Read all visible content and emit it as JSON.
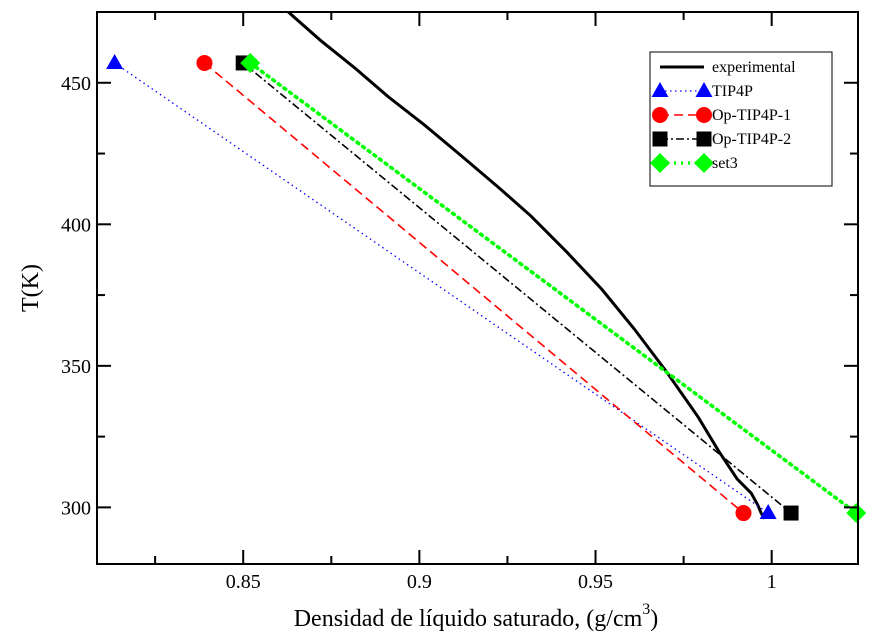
{
  "chart_data": {
    "type": "line",
    "title": "",
    "xlabel": "Densidad de líquido saturado, (g/cm",
    "xlabel_sup": "3",
    "xlabel_close": ")",
    "ylabel": "T(K)",
    "xlim": [
      0.8085,
      1.0245
    ],
    "ylim": [
      280,
      475
    ],
    "xticks": [
      0.85,
      0.9,
      0.95,
      1
    ],
    "xtick_labels": [
      "0.85",
      "0.9",
      "0.95",
      "1"
    ],
    "yticks": [
      300,
      350,
      400,
      450
    ],
    "ytick_labels": [
      "300",
      "350",
      "400",
      "450"
    ],
    "grid": false,
    "legend_position": "top-right",
    "series": [
      {
        "name": "experimental",
        "color": "#000000",
        "style": "solid",
        "marker": "none",
        "x": [
          0.8628,
          0.8719,
          0.8819,
          0.8912,
          0.9015,
          0.9121,
          0.9225,
          0.9316,
          0.942,
          0.9518,
          0.961,
          0.9701,
          0.9791,
          0.9849,
          0.9902,
          0.9942,
          0.996,
          0.997,
          0.998
        ],
        "y": [
          475,
          465,
          455,
          445,
          435,
          424,
          413,
          403,
          390,
          377,
          363,
          348,
          332,
          320,
          310,
          305,
          301,
          298,
          296
        ]
      },
      {
        "name": "TIP4P",
        "color": "#0000ff",
        "style": "dotted",
        "marker": "triangle",
        "x": [
          0.8135,
          0.999
        ],
        "y": [
          457,
          298
        ]
      },
      {
        "name": "Op-TIP4P-1",
        "color": "#ff0000",
        "style": "dashed",
        "marker": "circle",
        "x": [
          0.839,
          0.992
        ],
        "y": [
          457,
          298
        ]
      },
      {
        "name": "Op-TIP4P-2",
        "color": "#000000",
        "style": "dashdot",
        "marker": "square",
        "x": [
          0.85,
          1.0055
        ],
        "y": [
          457,
          298
        ]
      },
      {
        "name": "set3",
        "color": "#00ff00",
        "style": "dotted-thick",
        "marker": "diamond",
        "x": [
          0.852,
          1.024
        ],
        "y": [
          457,
          298
        ]
      }
    ]
  }
}
